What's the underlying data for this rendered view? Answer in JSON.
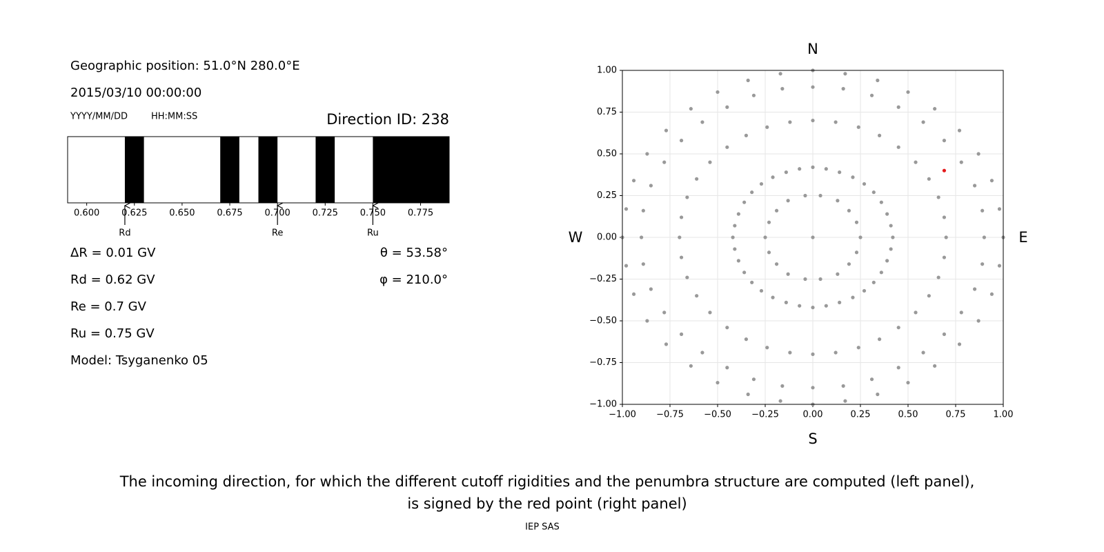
{
  "panel": {
    "position": "Geographic position: 51.0°N 280.0°E",
    "datetime": "2015/03/10 00:00:00",
    "date_format": "YYYY/MM/DD",
    "time_format": "HH:MM:SS",
    "direction": "Direction ID: 238",
    "stats": [
      "ΔR = 0.01 GV",
      "Rd = 0.62 GV",
      "Re = 0.7 GV",
      "Ru = 0.75 GV",
      "Model: Tsyganenko 05"
    ],
    "angles": [
      "θ = 53.58°",
      "φ = 210.0°"
    ],
    "caption": [
      "The incoming direction, for which the different cutoff rigidities and the penumbra structure are computed (left panel),",
      "is signed by the red point (right panel)"
    ],
    "footer": "IEP SAS"
  },
  "chart_data": [
    {
      "type": "penumbra",
      "color": "#000000",
      "xlim": [
        0.59,
        0.79
      ],
      "xticks": [
        {
          "value": 0.6,
          "label": "0.600"
        },
        {
          "value": 0.625,
          "label": "0.625"
        },
        {
          "value": 0.65,
          "label": "0.650"
        },
        {
          "value": 0.675,
          "label": "0.675"
        },
        {
          "value": 0.7,
          "label": "0.700"
        },
        {
          "value": 0.725,
          "label": "0.725"
        },
        {
          "value": 0.75,
          "label": "0.750"
        },
        {
          "value": 0.775,
          "label": "0.775"
        }
      ],
      "bands": [
        [
          0.62,
          0.63
        ],
        [
          0.67,
          0.68
        ],
        [
          0.69,
          0.7
        ],
        [
          0.72,
          0.73
        ],
        [
          0.75,
          0.79
        ]
      ],
      "markers": [
        {
          "label": "Rd",
          "value": 0.62
        },
        {
          "label": "Re",
          "value": 0.7
        },
        {
          "label": "Ru",
          "value": 0.75
        }
      ]
    },
    {
      "type": "scatter",
      "grid": true,
      "xlim": [
        -1,
        1
      ],
      "ylim": [
        -1,
        1
      ],
      "xticks": [
        {
          "value": -1,
          "label": "−1.00"
        },
        {
          "value": -0.75,
          "label": "−0.75"
        },
        {
          "value": -0.5,
          "label": "−0.50"
        },
        {
          "value": -0.25,
          "label": "−0.25"
        },
        {
          "value": 0,
          "label": "0.00"
        },
        {
          "value": 0.25,
          "label": "0.25"
        },
        {
          "value": 0.5,
          "label": "0.50"
        },
        {
          "value": 0.75,
          "label": "0.75"
        },
        {
          "value": 1,
          "label": "1.00"
        }
      ],
      "yticks": [
        {
          "value": -1,
          "label": "−1.00"
        },
        {
          "value": -0.75,
          "label": "−0.75"
        },
        {
          "value": -0.5,
          "label": "−0.50"
        },
        {
          "value": -0.25,
          "label": "−0.25"
        },
        {
          "value": 0,
          "label": "0.00"
        },
        {
          "value": 0.25,
          "label": "0.25"
        },
        {
          "value": 0.5,
          "label": "0.50"
        },
        {
          "value": 0.75,
          "label": "0.75"
        },
        {
          "value": 1,
          "label": "1.00"
        }
      ],
      "compass": {
        "N": "N",
        "S": "S",
        "W": "W",
        "E": "E"
      },
      "series": [
        {
          "color": "#999999",
          "x": [
            0
          ],
          "y": [
            0
          ]
        },
        {
          "color": "#999999",
          "x": [
            0.25,
            0.23,
            0.19,
            0.13,
            0.04,
            -0.04,
            -0.13,
            -0.19,
            -0.23,
            -0.25,
            -0.23,
            -0.19,
            -0.13,
            -0.04,
            0.04,
            0.13,
            0.19,
            0.23
          ],
          "y": [
            0,
            0.09,
            0.16,
            0.22,
            0.25,
            0.25,
            0.22,
            0.16,
            0.09,
            0,
            -0.09,
            -0.16,
            -0.22,
            -0.25,
            -0.25,
            -0.22,
            -0.16,
            -0.09
          ]
        },
        {
          "color": "#999999",
          "x": [
            0.42,
            0.41,
            0.39,
            0.36,
            0.32,
            0.27,
            0.21,
            0.14,
            0.07,
            0,
            -0.07,
            -0.14,
            -0.21,
            -0.27,
            -0.32,
            -0.36,
            -0.39,
            -0.41,
            -0.42,
            -0.41,
            -0.39,
            -0.36,
            -0.32,
            -0.27,
            -0.21,
            -0.14,
            -0.07,
            0,
            0.07,
            0.14,
            0.21,
            0.27,
            0.32,
            0.36,
            0.39,
            0.41
          ],
          "y": [
            0,
            0.07,
            0.14,
            0.21,
            0.27,
            0.32,
            0.36,
            0.39,
            0.41,
            0.42,
            0.41,
            0.39,
            0.36,
            0.32,
            0.27,
            0.21,
            0.14,
            0.07,
            0,
            -0.07,
            -0.14,
            -0.21,
            -0.27,
            -0.32,
            -0.36,
            -0.39,
            -0.41,
            -0.42,
            -0.41,
            -0.39,
            -0.36,
            -0.32,
            -0.27,
            -0.21,
            -0.14,
            -0.07
          ]
        },
        {
          "color": "#999999",
          "x": [
            0.7,
            0.69,
            0.66,
            0.61,
            0.54,
            0.45,
            0.35,
            0.24,
            0.12,
            0,
            -0.12,
            -0.24,
            -0.35,
            -0.45,
            -0.54,
            -0.61,
            -0.66,
            -0.69,
            -0.7,
            -0.69,
            -0.66,
            -0.61,
            -0.54,
            -0.45,
            -0.35,
            -0.24,
            -0.12,
            0,
            0.12,
            0.24,
            0.35,
            0.45,
            0.54,
            0.61,
            0.66,
            0.69
          ],
          "y": [
            0,
            0.12,
            0.24,
            0.35,
            0.45,
            0.54,
            0.61,
            0.66,
            0.69,
            0.7,
            0.69,
            0.66,
            0.61,
            0.54,
            0.45,
            0.35,
            0.24,
            0.12,
            0,
            -0.12,
            -0.24,
            -0.35,
            -0.45,
            -0.54,
            -0.61,
            -0.66,
            -0.69,
            -0.7,
            -0.69,
            -0.66,
            -0.61,
            -0.54,
            -0.45,
            -0.35,
            -0.24,
            -0.12
          ]
        },
        {
          "color": "#999999",
          "x": [
            0.9,
            0.89,
            0.85,
            0.78,
            0.69,
            0.58,
            0.45,
            0.31,
            0.16,
            0,
            -0.16,
            -0.31,
            -0.45,
            -0.58,
            -0.69,
            -0.78,
            -0.85,
            -0.89,
            -0.9,
            -0.89,
            -0.85,
            -0.78,
            -0.69,
            -0.58,
            -0.45,
            -0.31,
            -0.16,
            0,
            0.16,
            0.31,
            0.45,
            0.58,
            0.69,
            0.78,
            0.85,
            0.89
          ],
          "y": [
            0,
            0.16,
            0.31,
            0.45,
            0.58,
            0.69,
            0.78,
            0.85,
            0.89,
            0.9,
            0.89,
            0.85,
            0.78,
            0.69,
            0.58,
            0.45,
            0.31,
            0.16,
            0,
            -0.16,
            -0.31,
            -0.45,
            -0.58,
            -0.69,
            -0.78,
            -0.85,
            -0.89,
            -0.9,
            -0.89,
            -0.85,
            -0.78,
            -0.69,
            -0.58,
            -0.45,
            -0.31,
            -0.16
          ]
        },
        {
          "color": "#999999",
          "x": [
            1,
            0.98,
            0.94,
            0.87,
            0.77,
            0.64,
            0.5,
            0.34,
            0.17,
            0,
            -0.17,
            -0.34,
            -0.5,
            -0.64,
            -0.77,
            -0.87,
            -0.94,
            -0.98,
            -1,
            -0.98,
            -0.94,
            -0.87,
            -0.77,
            -0.64,
            -0.5,
            -0.34,
            -0.17,
            0,
            0.17,
            0.34,
            0.5,
            0.64,
            0.77,
            0.87,
            0.94,
            0.98
          ],
          "y": [
            0,
            0.17,
            0.34,
            0.5,
            0.64,
            0.77,
            0.87,
            0.94,
            0.98,
            1,
            0.98,
            0.94,
            0.87,
            0.77,
            0.64,
            0.5,
            0.34,
            0.17,
            0,
            -0.17,
            -0.34,
            -0.5,
            -0.64,
            -0.77,
            -0.87,
            -0.94,
            -0.98,
            -1,
            -0.98,
            -0.94,
            -0.87,
            -0.77,
            -0.64,
            -0.5,
            -0.34,
            -0.17
          ]
        },
        {
          "color": "#e41a1c",
          "x": [
            0.69
          ],
          "y": [
            0.4
          ]
        }
      ]
    }
  ]
}
